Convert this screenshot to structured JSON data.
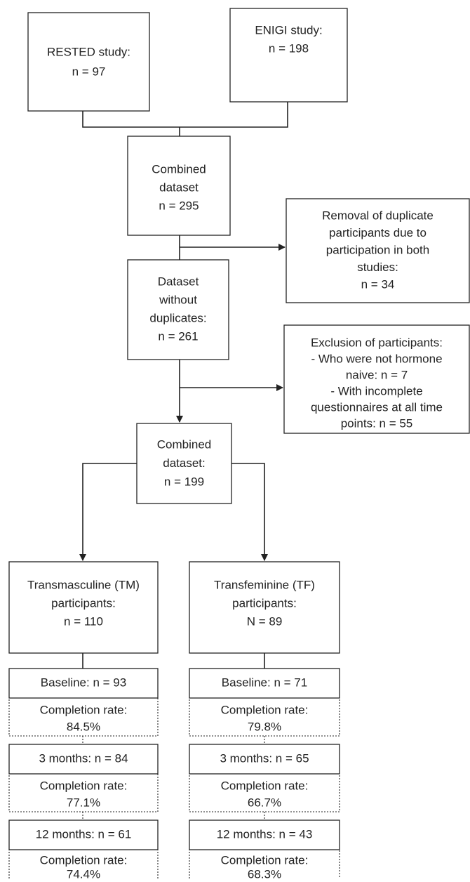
{
  "nodes": [
    {
      "lines": [
        "RESTED study:",
        "n = 97"
      ]
    },
    {
      "lines": [
        "ENIGI study:",
        "n = 198"
      ]
    },
    {
      "lines": [
        "Combined",
        "dataset",
        "n = 295"
      ]
    },
    {
      "lines": [
        "Removal of duplicate",
        "participants due to",
        "participation in both",
        "studies:",
        "n = 34"
      ]
    },
    {
      "lines": [
        "Dataset",
        "without",
        "duplicates:",
        "n = 261"
      ]
    },
    {
      "lines": [
        "Exclusion of participants:",
        "- Who were not hormone",
        "naive: n = 7",
        "- With incomplete",
        "questionnaires at all time",
        "points: n = 55"
      ]
    },
    {
      "lines": [
        "Combined",
        "dataset:",
        "n = 199"
      ]
    },
    {
      "lines": [
        "Transmasculine (TM)",
        "participants:",
        "n = 110"
      ]
    },
    {
      "lines": [
        "Transfeminine (TF)",
        "participants:",
        "N = 89"
      ]
    },
    {
      "lines": [
        "Baseline: n = 93"
      ]
    },
    {
      "lines": [
        "Completion rate:",
        "84.5%"
      ]
    },
    {
      "lines": [
        "3 months: n = 84"
      ]
    },
    {
      "lines": [
        "Completion rate:",
        "77.1%"
      ]
    },
    {
      "lines": [
        "12 months: n = 61"
      ]
    },
    {
      "lines": [
        "Completion rate:",
        "74.4%"
      ]
    },
    {
      "lines": [
        "Baseline: n = 71"
      ]
    },
    {
      "lines": [
        "Completion rate:",
        "79.8%"
      ]
    },
    {
      "lines": [
        "3 months: n = 65"
      ]
    },
    {
      "lines": [
        "Completion rate:",
        "66.7%"
      ]
    },
    {
      "lines": [
        "12 months: n = 43"
      ]
    },
    {
      "lines": [
        "Completion rate:",
        "68.3%"
      ]
    }
  ]
}
